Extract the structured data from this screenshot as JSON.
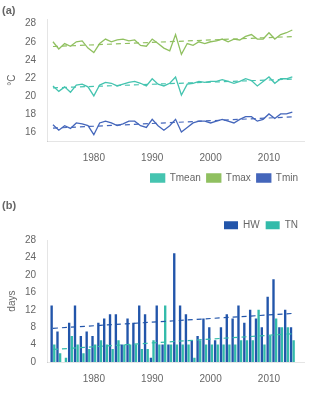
{
  "chart_data": [
    {
      "type": "line",
      "title": "(a)",
      "ylabel": "°C",
      "x": [
        1973,
        1974,
        1975,
        1976,
        1977,
        1978,
        1979,
        1980,
        1981,
        1982,
        1983,
        1984,
        1985,
        1986,
        1987,
        1988,
        1989,
        1990,
        1991,
        1992,
        1993,
        1994,
        1995,
        1996,
        1997,
        1998,
        1999,
        2000,
        2001,
        2002,
        2003,
        2004,
        2005,
        2006,
        2007,
        2008,
        2009,
        2010,
        2011,
        2012,
        2013,
        2014
      ],
      "xlim": [
        1972,
        2016
      ],
      "xticks": [
        1980,
        1990,
        2000,
        2010
      ],
      "ylim": [
        15.0,
        28.5
      ],
      "yticks": [
        16,
        18,
        20,
        22,
        24,
        26,
        28
      ],
      "grid": false,
      "legend": "lower right",
      "series": [
        {
          "name": "Tmean",
          "color": "#45c4b0",
          "values": [
            21.1,
            20.5,
            21.0,
            20.4,
            21.2,
            21.3,
            21.0,
            20.0,
            21.2,
            21.5,
            21.4,
            21.1,
            21.3,
            21.5,
            21.6,
            21.4,
            21.1,
            21.9,
            21.3,
            21.1,
            21.4,
            22.1,
            20.1,
            21.3,
            21.4,
            21.6,
            21.5,
            21.6,
            21.6,
            21.8,
            21.6,
            21.4,
            21.6,
            21.9,
            21.7,
            21.1,
            21.6,
            22.1,
            21.4,
            21.9,
            21.9,
            22.1
          ]
        },
        {
          "color": "#45c4b0",
          "line_style": "dashed",
          "x": [
            1973,
            2014
          ],
          "values": [
            20.888,
            21.854
          ]
        },
        {
          "name": "Tmax",
          "color": "#90c060",
          "values": [
            26.0,
            25.2,
            25.8,
            25.5,
            26.0,
            26.1,
            25.3,
            24.8,
            25.8,
            26.3,
            26.0,
            26.2,
            26.3,
            26.1,
            26.2,
            25.6,
            25.5,
            26.3,
            25.8,
            25.3,
            25.0,
            26.8,
            24.6,
            25.8,
            25.6,
            26.0,
            25.8,
            26.0,
            26.1,
            26.3,
            26.0,
            26.3,
            26.2,
            26.6,
            26.8,
            26.3,
            26.3,
            27.0,
            26.3,
            26.8,
            27.0,
            27.3
          ]
        },
        {
          "color": "#90c060",
          "line_style": "dashed",
          "x": [
            1973,
            2014
          ],
          "values": [
            25.476,
            26.572
          ]
        },
        {
          "name": "Tmin",
          "color": "#4466bb",
          "values": [
            16.8,
            16.2,
            16.7,
            16.4,
            17.0,
            16.9,
            16.7,
            15.7,
            17.0,
            17.2,
            17.0,
            16.7,
            16.9,
            17.2,
            17.2,
            16.7,
            16.5,
            17.4,
            16.7,
            16.2,
            16.7,
            17.4,
            16.0,
            16.5,
            17.0,
            17.2,
            17.2,
            17.0,
            17.2,
            17.4,
            17.2,
            17.0,
            17.4,
            17.7,
            17.7,
            17.2,
            17.4,
            18.0,
            17.5,
            18.0,
            18.0,
            18.2
          ]
        },
        {
          "color": "#4466bb",
          "line_style": "dashed",
          "x": [
            1973,
            2014
          ],
          "values": [
            16.422,
            17.674
          ]
        }
      ]
    },
    {
      "type": "bar",
      "title": "(b)",
      "ylabel": "days",
      "x": [
        1973,
        1974,
        1975,
        1976,
        1977,
        1978,
        1979,
        1980,
        1981,
        1982,
        1983,
        1984,
        1985,
        1986,
        1987,
        1988,
        1989,
        1990,
        1991,
        1992,
        1993,
        1994,
        1995,
        1996,
        1997,
        1998,
        1999,
        2000,
        2001,
        2002,
        2003,
        2004,
        2005,
        2006,
        2007,
        2008,
        2009,
        2010,
        2011,
        2012,
        2013,
        2014
      ],
      "xlim": [
        1972,
        2016
      ],
      "xticks": [
        1980,
        1990,
        2000,
        2010
      ],
      "ylim": [
        0,
        28
      ],
      "yticks": [
        0,
        4,
        8,
        12,
        16,
        20,
        24,
        28
      ],
      "grid": false,
      "legend": "upper right",
      "series": [
        {
          "name": "HW",
          "color": "#2255aa",
          "values": [
            13,
            7,
            0,
            9,
            13,
            6,
            7,
            6,
            9,
            10,
            11,
            11,
            4,
            10,
            9,
            13,
            11,
            1,
            13,
            4,
            4,
            25,
            13,
            11,
            5,
            6,
            10,
            8,
            5,
            8,
            11,
            10,
            13,
            9,
            12,
            10,
            8,
            15,
            19,
            8,
            12,
            8
          ]
        },
        {
          "name": "TN",
          "color": "#33bbaa",
          "values": [
            4,
            2,
            1,
            6,
            4,
            2,
            3,
            4,
            5,
            4,
            3,
            5,
            4,
            4,
            4,
            3,
            3,
            5,
            4,
            13,
            4,
            4,
            4,
            4,
            1,
            5,
            4,
            4,
            4,
            4,
            4,
            4,
            5,
            5,
            5,
            12,
            4,
            6,
            10,
            8,
            8,
            5
          ]
        },
        {
          "type": "line",
          "color": "#2255aa",
          "line_style": "dashed",
          "x": [
            1973,
            2014
          ],
          "values": [
            7.743,
            11.162
          ]
        },
        {
          "type": "line",
          "color": "#33bbaa",
          "line_style": "dashed",
          "x": [
            1973,
            2014
          ],
          "values": [
            2.882,
            6.499
          ]
        }
      ]
    }
  ]
}
